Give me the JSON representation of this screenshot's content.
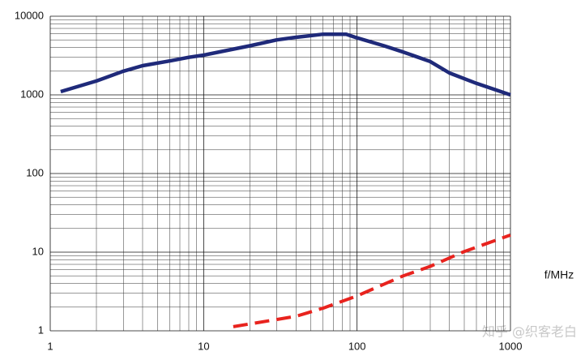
{
  "chart_data": {
    "type": "line",
    "x_label": "f/MHz",
    "watermark": "知乎 @织客老白",
    "xlog": true,
    "ylog": true,
    "grid": true,
    "minor_grid": true,
    "xlim": [
      1,
      1000
    ],
    "ylim": [
      1,
      10000
    ],
    "xticks": [
      1,
      10,
      100,
      1000
    ],
    "yticks": [
      1,
      10,
      100,
      1000,
      10000
    ],
    "series": [
      {
        "color": "#1f2a7a",
        "dash": false,
        "x": [
          1.17,
          2,
          3,
          4,
          6,
          8,
          10,
          20,
          30,
          40,
          60,
          85,
          100,
          150,
          200,
          300,
          400,
          600,
          1000
        ],
        "values": [
          1100,
          1500,
          2000,
          2350,
          2700,
          3000,
          3200,
          4200,
          5000,
          5400,
          5900,
          5900,
          5300,
          4200,
          3500,
          2650,
          1900,
          1400,
          1000
        ]
      },
      {
        "color": "#e8231e",
        "dash": true,
        "x": [
          15.6,
          40,
          60,
          100,
          200,
          300,
          500,
          1000
        ],
        "values": [
          1.13,
          1.53,
          1.94,
          2.78,
          5.0,
          6.6,
          10.2,
          16.5
        ]
      }
    ]
  }
}
